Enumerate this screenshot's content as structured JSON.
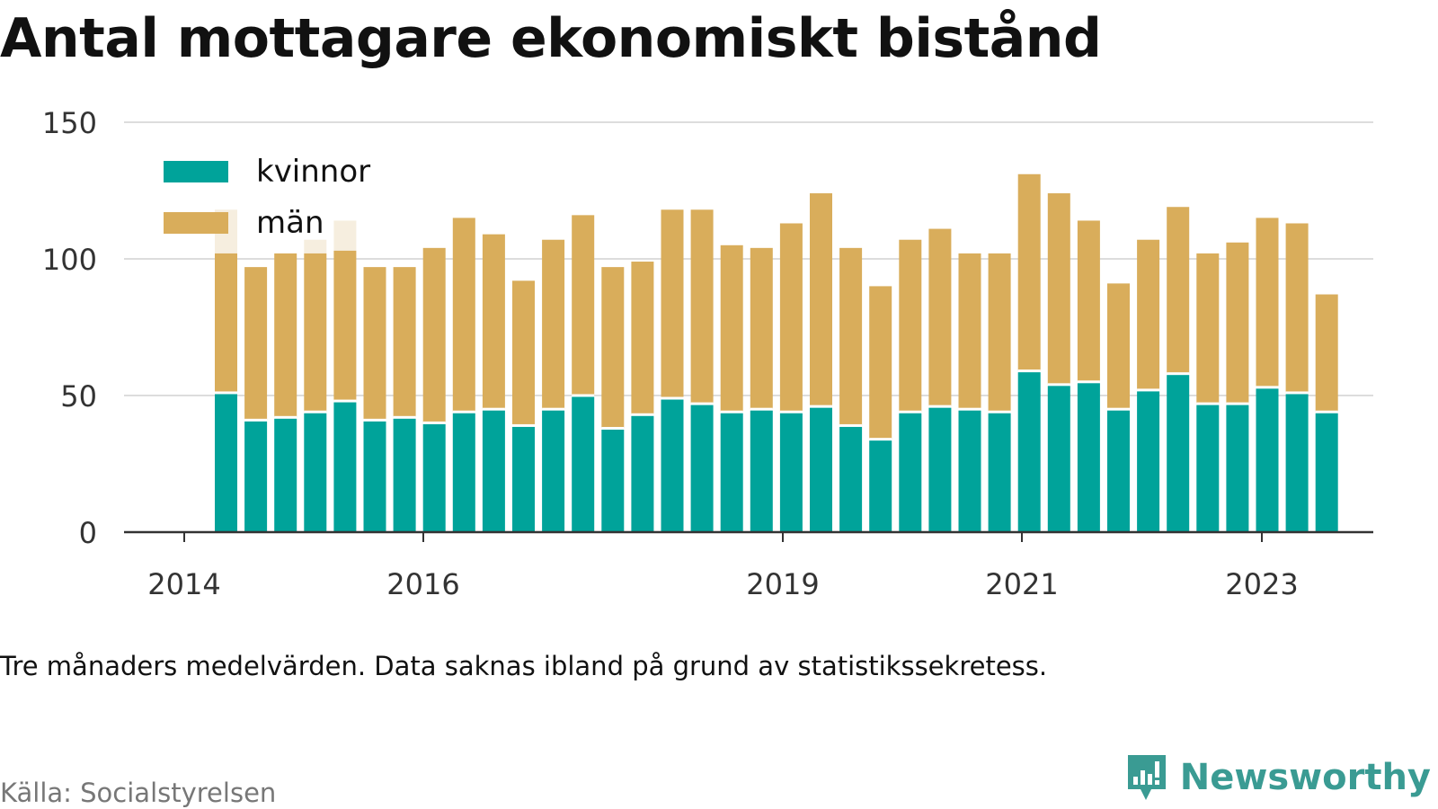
{
  "title": "Antal mottagare ekonomiskt bistånd",
  "caption": "Tre månaders medelvärden. Data saknas ibland på grund av statistikssekretess.",
  "source": "Källa: Socialstyrelsen",
  "brand": {
    "name": "Newsworthy",
    "icon": "newsworthy-logo-icon",
    "color": "#3a9b93"
  },
  "colors": {
    "kvinnor": "#00a39a",
    "man": "#d9ad5b",
    "missing": "#f6eedf",
    "grid": "#dddddd",
    "axis": "#333333"
  },
  "chart_data": {
    "type": "bar",
    "stacked": true,
    "yticks": [
      0,
      50,
      100,
      150
    ],
    "ylim": [
      0,
      150
    ],
    "xticks": [
      "2014",
      "2016",
      "2019",
      "2021",
      "2023"
    ],
    "legend": "top-left",
    "grid": true,
    "series": [
      {
        "name": "kvinnor",
        "color": "#00a39a",
        "values": [
          51,
          41,
          42,
          44,
          48,
          41,
          42,
          40,
          44,
          45,
          39,
          45,
          50,
          38,
          43,
          49,
          47,
          44,
          45,
          44,
          46,
          39,
          34,
          44,
          46,
          45,
          44,
          59,
          54,
          55,
          45,
          52,
          58,
          47,
          47,
          53,
          51,
          44
        ]
      },
      {
        "name": "män",
        "color": "#d9ad5b",
        "values": [
          51,
          56,
          60,
          58,
          55,
          56,
          55,
          64,
          71,
          64,
          53,
          62,
          66,
          59,
          56,
          69,
          71,
          61,
          59,
          69,
          78,
          65,
          56,
          63,
          65,
          57,
          58,
          72,
          70,
          59,
          46,
          55,
          61,
          55,
          59,
          62,
          62,
          43
        ]
      }
    ],
    "missing_totals": [
      118,
      null,
      null,
      107,
      114,
      null,
      null,
      null,
      null,
      null,
      null,
      null,
      null,
      null,
      null,
      null,
      null,
      null,
      null,
      null,
      null,
      null,
      null,
      null,
      null,
      null,
      null,
      null,
      null,
      null,
      null,
      null,
      null,
      null,
      null,
      null,
      null,
      null
    ]
  }
}
